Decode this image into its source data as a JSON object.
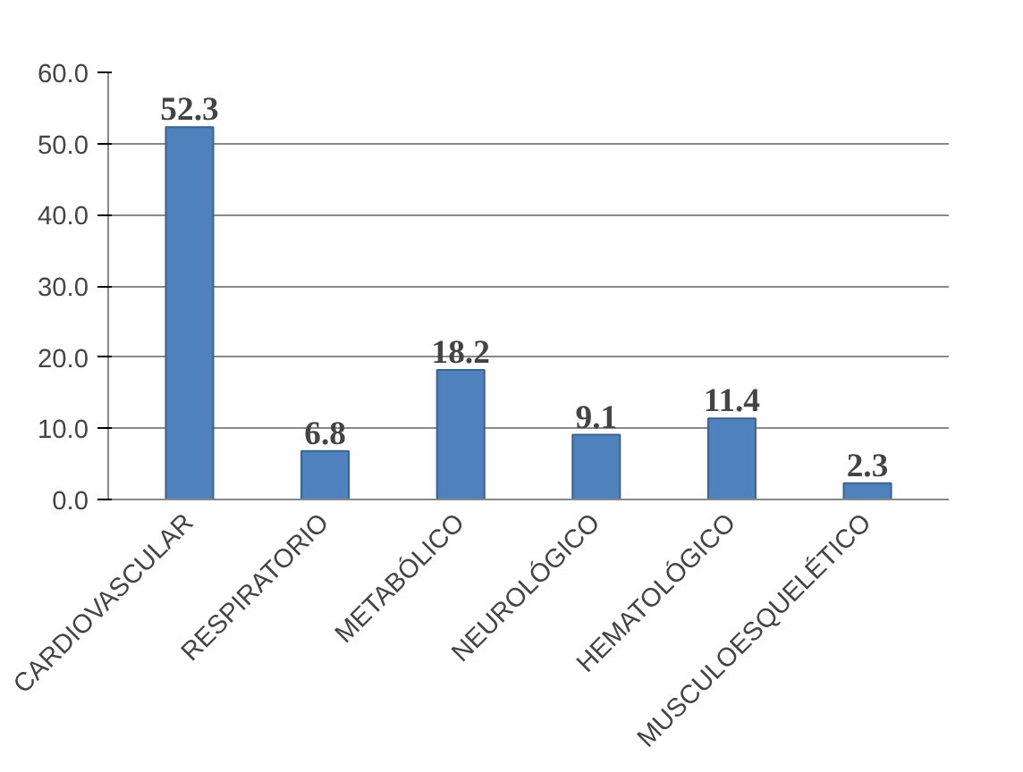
{
  "chart_data": {
    "type": "bar",
    "categories": [
      "CARDIOVASCULAR",
      "RESPIRATORIO",
      "METABÓLICO",
      "NEUROLÓGICO",
      "HEMATOLÓGICO",
      "MUSCULOESQUELÉTICO"
    ],
    "values": [
      52.3,
      6.8,
      18.2,
      9.1,
      11.4,
      2.3
    ],
    "color": "#4f81bd",
    "data_labels": true,
    "grid": "y",
    "ylim": [
      0,
      60
    ],
    "yticks": [
      {
        "value": 0,
        "label": "0.0"
      },
      {
        "value": 10,
        "label": "10.0"
      },
      {
        "value": 20,
        "label": "20.0"
      },
      {
        "value": 30,
        "label": "30.0"
      },
      {
        "value": 40,
        "label": "40.0"
      },
      {
        "value": 50,
        "label": "50.0"
      },
      {
        "value": 60,
        "label": "60.0"
      }
    ]
  }
}
